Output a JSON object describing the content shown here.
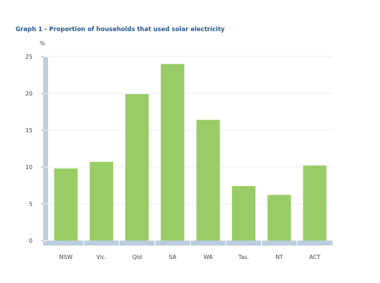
{
  "chart_data": {
    "type": "bar",
    "title": "Graph 1 - Proportion of households that used solar electricity",
    "ylabel": "%",
    "xlabel": "",
    "categories": [
      "NSW",
      "Vic.",
      "Qld",
      "SA",
      "WA",
      "Tas.",
      "NT",
      "ACT"
    ],
    "values": [
      9.8,
      10.7,
      19.9,
      24.0,
      16.4,
      7.4,
      6.2,
      10.2
    ],
    "ylim": [
      0,
      25
    ],
    "yticks": [
      "0",
      "5",
      "10",
      "15",
      "20",
      "25"
    ],
    "grid": true,
    "legend": "none",
    "bar_color": "#99cc66",
    "axis_color": "#bccdde"
  }
}
